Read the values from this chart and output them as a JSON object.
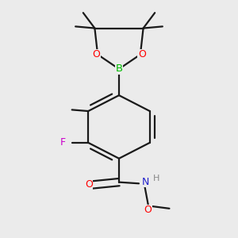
{
  "background_color": "#ebebeb",
  "bond_color": "#1a1a1a",
  "atom_colors": {
    "B": "#00bb00",
    "O": "#ff0000",
    "F": "#cc00cc",
    "N": "#2222cc",
    "C": "#1a1a1a",
    "H": "#555555"
  },
  "figsize": [
    3.0,
    3.0
  ],
  "dpi": 100,
  "bond_lw": 1.6,
  "double_sep": 0.018,
  "font_size": 9
}
